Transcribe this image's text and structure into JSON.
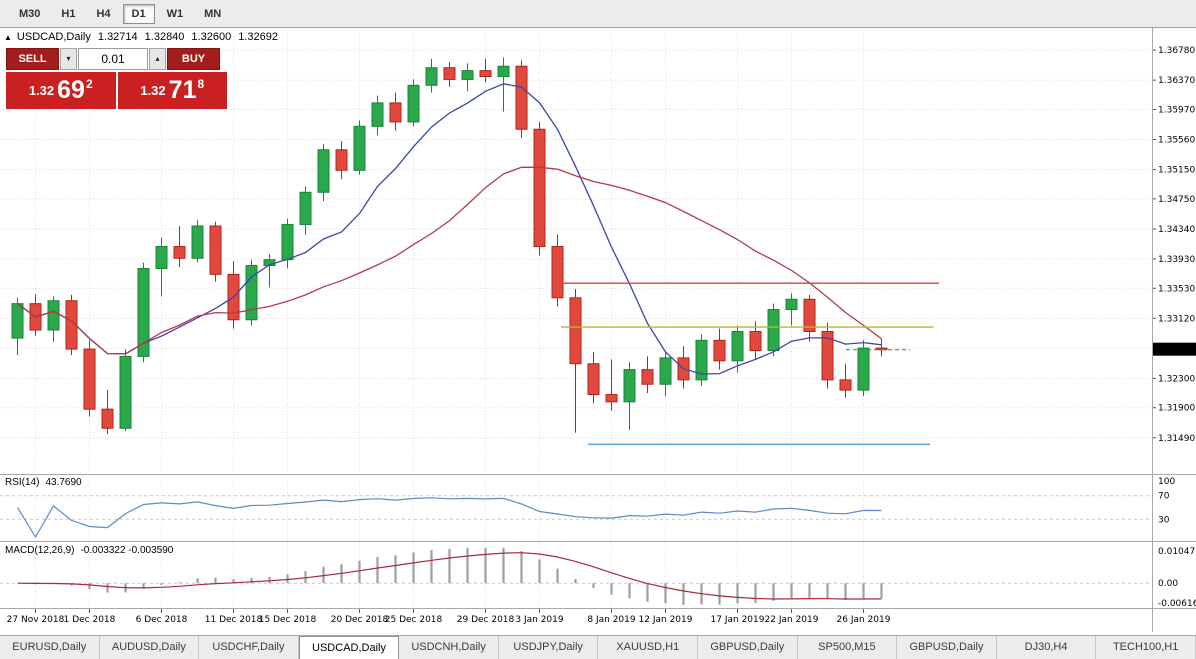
{
  "toolbar": {
    "timeframes": [
      "M30",
      "H1",
      "H4",
      "D1",
      "W1",
      "MN"
    ],
    "active": "D1"
  },
  "chart_header": {
    "collapse_icon": "▲",
    "symbol": "USDCAD,Daily",
    "open": "1.32714",
    "high": "1.32840",
    "low": "1.32600",
    "close": "1.32692"
  },
  "trade_panel": {
    "sell_label": "SELL",
    "buy_label": "BUY",
    "volume": "0.01",
    "bid": {
      "prefix": "1.32",
      "main": "69",
      "pip": "2"
    },
    "ask": {
      "prefix": "1.32",
      "main": "71",
      "pip": "8"
    }
  },
  "rsi_panel": {
    "label": "RSI(14)",
    "value": "43.7690",
    "axis_labels": [
      {
        "v": 100,
        "t": "100"
      },
      {
        "v": 70,
        "t": "70"
      },
      {
        "v": 30,
        "t": "30"
      }
    ],
    "level_lines": [
      70,
      30
    ]
  },
  "macd_panel": {
    "label": "MACD(12,26,9)",
    "values": "-0.003322 -0.003590",
    "axis_top": "0.010471",
    "axis_zero": "0.00",
    "axis_bottom": "-0.006164"
  },
  "tabs": {
    "items": [
      "EURUSD,Daily",
      "AUDUSD,Daily",
      "USDCHF,Daily",
      "USDCAD,Daily",
      "USDCNH,Daily",
      "USDJPY,Daily",
      "XAUUSD,H1",
      "GBPUSD,Daily",
      "SP500,M15",
      "GBPUSD,Daily",
      "DJ30,H4",
      "TECH100,H1"
    ],
    "active_index": 3
  },
  "chart_data": {
    "type": "candlestick",
    "title": "USDCAD,Daily",
    "price_range": {
      "top": 1.37,
      "bottom": 1.3105
    },
    "price_ticks": [
      "1.36780",
      "1.36370",
      "1.35970",
      "1.35560",
      "1.35150",
      "1.34750",
      "1.34340",
      "1.33930",
      "1.33530",
      "1.33120",
      "1.32710",
      "1.32300",
      "1.31900",
      "1.31490"
    ],
    "date_ticks": [
      [
        1,
        "27 Nov 2018"
      ],
      [
        4,
        "1 Dec 2018"
      ],
      [
        8,
        "6 Dec 2018"
      ],
      [
        12,
        "11 Dec 2018"
      ],
      [
        15,
        "15 Dec 2018"
      ],
      [
        19,
        "20 Dec 2018"
      ],
      [
        22,
        "25 Dec 2018"
      ],
      [
        26,
        "29 Dec 2018"
      ],
      [
        29,
        "3 Jan 2019"
      ],
      [
        33,
        "8 Jan 2019"
      ],
      [
        36,
        "12 Jan 2019"
      ],
      [
        40,
        "17 Jan 2019"
      ],
      [
        43,
        "22 Jan 2019"
      ],
      [
        47,
        "26 Jan 2019"
      ]
    ],
    "candles_ohlc": [
      [
        1.3285,
        1.334,
        1.3262,
        1.3332
      ],
      [
        1.3332,
        1.3345,
        1.3288,
        1.3296
      ],
      [
        1.3296,
        1.3342,
        1.328,
        1.3336
      ],
      [
        1.3336,
        1.3344,
        1.3262,
        1.327
      ],
      [
        1.327,
        1.3282,
        1.3178,
        1.3188
      ],
      [
        1.3188,
        1.3214,
        1.3154,
        1.3162
      ],
      [
        1.3162,
        1.327,
        1.3158,
        1.326
      ],
      [
        1.326,
        1.3388,
        1.3252,
        1.338
      ],
      [
        1.338,
        1.3422,
        1.3342,
        1.341
      ],
      [
        1.341,
        1.3438,
        1.3382,
        1.3394
      ],
      [
        1.3394,
        1.3446,
        1.3388,
        1.3438
      ],
      [
        1.3438,
        1.3444,
        1.3362,
        1.3372
      ],
      [
        1.3372,
        1.339,
        1.3298,
        1.331
      ],
      [
        1.331,
        1.3392,
        1.3302,
        1.3384
      ],
      [
        1.3384,
        1.34,
        1.3354,
        1.3392
      ],
      [
        1.3392,
        1.3448,
        1.338,
        1.344
      ],
      [
        1.344,
        1.3492,
        1.3426,
        1.3484
      ],
      [
        1.3484,
        1.355,
        1.3472,
        1.3542
      ],
      [
        1.3542,
        1.3554,
        1.3502,
        1.3514
      ],
      [
        1.3514,
        1.3582,
        1.3508,
        1.3574
      ],
      [
        1.3574,
        1.3616,
        1.3562,
        1.3606
      ],
      [
        1.3606,
        1.362,
        1.3568,
        1.358
      ],
      [
        1.358,
        1.3638,
        1.3574,
        1.363
      ],
      [
        1.363,
        1.3666,
        1.362,
        1.3654
      ],
      [
        1.3654,
        1.3662,
        1.3628,
        1.3638
      ],
      [
        1.3638,
        1.366,
        1.3622,
        1.365
      ],
      [
        1.365,
        1.3666,
        1.3634,
        1.3642
      ],
      [
        1.3642,
        1.3668,
        1.3594,
        1.3656
      ],
      [
        1.3656,
        1.3664,
        1.3558,
        1.357
      ],
      [
        1.357,
        1.358,
        1.3398,
        1.341
      ],
      [
        1.341,
        1.3426,
        1.3328,
        1.334
      ],
      [
        1.334,
        1.3352,
        1.3156,
        1.325
      ],
      [
        1.325,
        1.3266,
        1.3196,
        1.3208
      ],
      [
        1.3208,
        1.3256,
        1.3186,
        1.3198
      ],
      [
        1.3198,
        1.3252,
        1.316,
        1.3242
      ],
      [
        1.3242,
        1.326,
        1.321,
        1.3222
      ],
      [
        1.3222,
        1.3268,
        1.3206,
        1.3258
      ],
      [
        1.3258,
        1.3274,
        1.3216,
        1.3228
      ],
      [
        1.3228,
        1.329,
        1.322,
        1.3282
      ],
      [
        1.3282,
        1.3298,
        1.3242,
        1.3254
      ],
      [
        1.3254,
        1.3302,
        1.3238,
        1.3294
      ],
      [
        1.3294,
        1.3308,
        1.3256,
        1.3268
      ],
      [
        1.3268,
        1.3332,
        1.326,
        1.3324
      ],
      [
        1.3324,
        1.3346,
        1.3302,
        1.3338
      ],
      [
        1.3338,
        1.3344,
        1.328,
        1.3294
      ],
      [
        1.3294,
        1.3306,
        1.3216,
        1.3228
      ],
      [
        1.3228,
        1.325,
        1.3204,
        1.3214
      ],
      [
        1.3214,
        1.3282,
        1.3206,
        1.32714
      ],
      [
        1.32714,
        1.3284,
        1.326,
        1.32692
      ]
    ],
    "colors": {
      "up": "#2aa84a",
      "up_stroke": "#15863a",
      "down": "#e2483d",
      "down_stroke": "#b02619",
      "grid": "#dedede",
      "separator": "#a8a8a8",
      "price_tag_bg": "#000000",
      "price_tag_text": "#ffffff",
      "last_price_line": "#2aa84a"
    },
    "moving_averages": [
      {
        "name": "ma-fast",
        "window": 8,
        "color": "#3a47a8"
      },
      {
        "name": "ma-slow",
        "window": 21,
        "color": "#b23a4a"
      }
    ],
    "hlines": [
      {
        "value": 1.336,
        "color": "#e03c3c",
        "from_idx": 30.5,
        "to_idx": 51.5,
        "width": 1.4
      },
      {
        "value": 1.33,
        "color": "#b9b92c",
        "from_idx": 30.5,
        "to_idx": 51.2,
        "width": 1.4
      },
      {
        "value": 1.314,
        "color": "#5aa8e6",
        "from_idx": 32.0,
        "to_idx": 51.0,
        "width": 1.6
      }
    ],
    "last_price": "1.32692",
    "indicators": {
      "rsi": {
        "period": 14,
        "current": "43.7690",
        "color": "#5b8ac6"
      },
      "macd": {
        "fast": 12,
        "slow": 26,
        "signal": 9,
        "macd_current": "-0.003322",
        "signal_current": "-0.003590",
        "bar_color": "#9e9e9e",
        "signal_color": "#aa2a3a"
      }
    }
  }
}
